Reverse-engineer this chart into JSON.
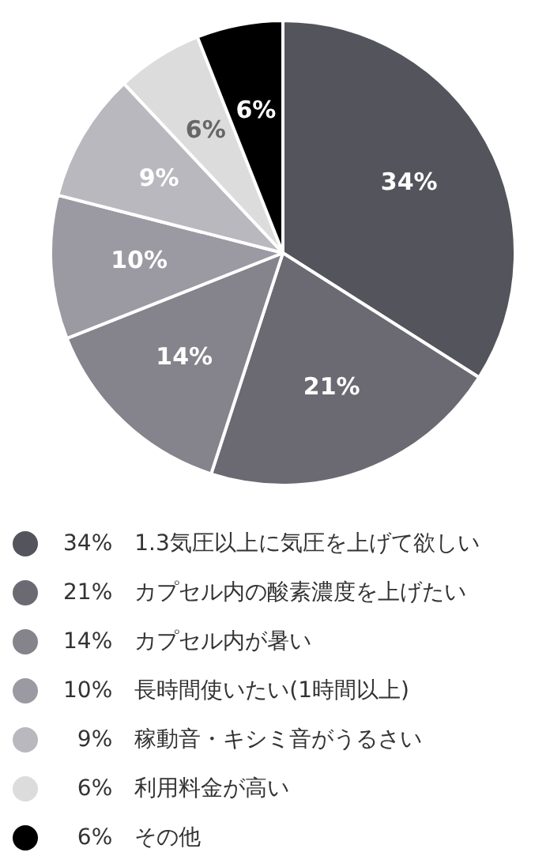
{
  "chart_data": {
    "type": "pie",
    "categories": [
      "1.3気圧以上に気圧を上げて欲しい",
      "カプセル内の酸素濃度を上げたい",
      "カプセル内が暑い",
      "長時間使いたい(1時間以上)",
      "稼動音・キシミ音がうるさい",
      "利用料金が高い",
      "その他"
    ],
    "values": [
      34,
      21,
      14,
      10,
      9,
      6,
      6
    ],
    "colors": [
      "#54545c",
      "#6b6a73",
      "#85848c",
      "#9b9aa3",
      "#b9b8bf",
      "#dcdcdc",
      "#000000"
    ],
    "value_labels": [
      "34%",
      "21%",
      "14%",
      "10%",
      "9%",
      "6%",
      "6%"
    ],
    "legend": "bottom"
  }
}
